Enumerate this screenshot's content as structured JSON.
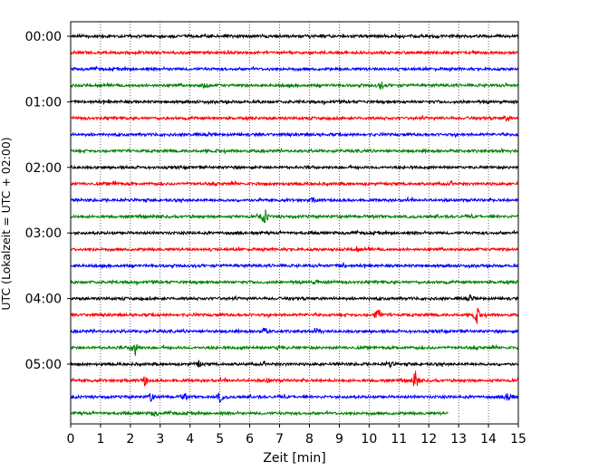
{
  "chart_data": {
    "type": "line",
    "title": "",
    "xlabel": "Zeit  [min]",
    "ylabel": "UTC (Lokalzeit = UTC + 02:00)",
    "xlim": [
      0,
      15
    ],
    "x_ticks": [
      "0",
      "1",
      "2",
      "3",
      "4",
      "5",
      "6",
      "7",
      "8",
      "9",
      "10",
      "11",
      "12",
      "13",
      "14",
      "15"
    ],
    "y_ticks": [
      "00:00",
      "01:00",
      "02:00",
      "03:00",
      "04:00",
      "05:00"
    ],
    "grid": "vertical dotted",
    "colors": [
      "#000000",
      "#ff0000",
      "#0000ff",
      "#008000"
    ],
    "trace_length_min": 15,
    "last_trace_end_min": 12.65,
    "traces": [
      {
        "start": "00:00",
        "color": "#000000",
        "events": []
      },
      {
        "start": "00:15",
        "color": "#ff0000",
        "events": []
      },
      {
        "start": "00:30",
        "color": "#0000ff",
        "events": []
      },
      {
        "start": "00:45",
        "color": "#008000",
        "events": [
          [
            4.5,
            0.4
          ],
          [
            10.4,
            0.5
          ]
        ]
      },
      {
        "start": "01:00",
        "color": "#000000",
        "events": []
      },
      {
        "start": "01:15",
        "color": "#ff0000",
        "events": [
          [
            14.6,
            0.3
          ]
        ]
      },
      {
        "start": "01:30",
        "color": "#0000ff",
        "events": []
      },
      {
        "start": "01:45",
        "color": "#008000",
        "events": []
      },
      {
        "start": "02:00",
        "color": "#000000",
        "events": []
      },
      {
        "start": "02:15",
        "color": "#ff0000",
        "events": [
          [
            1.5,
            0.3
          ]
        ]
      },
      {
        "start": "02:30",
        "color": "#0000ff",
        "events": [
          [
            8.1,
            0.3
          ]
        ]
      },
      {
        "start": "02:45",
        "color": "#008000",
        "events": [
          [
            6.5,
            1.0
          ]
        ]
      },
      {
        "start": "03:00",
        "color": "#000000",
        "events": []
      },
      {
        "start": "03:15",
        "color": "#ff0000",
        "events": [
          [
            9.6,
            0.3
          ]
        ]
      },
      {
        "start": "03:30",
        "color": "#0000ff",
        "events": [
          [
            9.1,
            0.3
          ]
        ]
      },
      {
        "start": "03:45",
        "color": "#008000",
        "events": [
          [
            8.2,
            0.2
          ]
        ]
      },
      {
        "start": "04:00",
        "color": "#000000",
        "events": [
          [
            13.4,
            0.3
          ]
        ]
      },
      {
        "start": "04:15",
        "color": "#ff0000",
        "events": [
          [
            10.3,
            1.0
          ],
          [
            13.6,
            1.1
          ]
        ]
      },
      {
        "start": "04:30",
        "color": "#0000ff",
        "events": [
          [
            6.5,
            0.4
          ],
          [
            8.3,
            0.4
          ]
        ]
      },
      {
        "start": "04:45",
        "color": "#008000",
        "events": [
          [
            2.15,
            1.1
          ],
          [
            7.0,
            0.3
          ]
        ]
      },
      {
        "start": "05:00",
        "color": "#000000",
        "events": [
          [
            4.3,
            0.3
          ],
          [
            10.7,
            0.4
          ]
        ]
      },
      {
        "start": "05:15",
        "color": "#ff0000",
        "events": [
          [
            2.5,
            0.6
          ],
          [
            6.6,
            0.3
          ],
          [
            11.55,
            1.2
          ]
        ]
      },
      {
        "start": "05:30",
        "color": "#0000ff",
        "events": [
          [
            2.7,
            0.5
          ],
          [
            3.8,
            0.4
          ],
          [
            5.0,
            0.6
          ],
          [
            14.7,
            0.9
          ]
        ]
      },
      {
        "start": "05:45",
        "color": "#008000",
        "events": [
          [
            2.8,
            0.3
          ]
        ]
      }
    ]
  }
}
